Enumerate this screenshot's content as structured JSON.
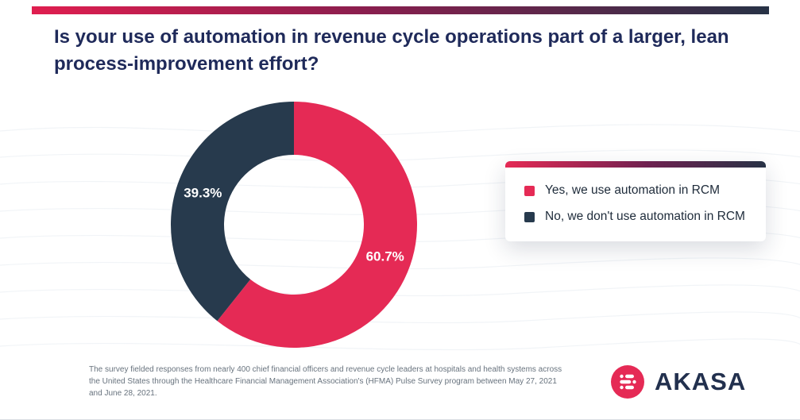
{
  "header": {
    "title": "Is your use of automation in revenue cycle operations part of a larger, lean process-improvement effort?"
  },
  "chart_data": {
    "type": "pie",
    "donut": true,
    "title": "Is your use of automation in revenue cycle operations part of a larger, lean process-improvement effort?",
    "start_angle_deg": 0,
    "direction": "clockwise",
    "legend_position": "right",
    "slices": [
      {
        "label": "Yes, we use automation in RCM",
        "value": 60.7,
        "display": "60.7%",
        "color": "#E52A55"
      },
      {
        "label": "No, we don't use automation in RCM",
        "value": 39.3,
        "display": "39.3%",
        "color": "#273A4D"
      }
    ]
  },
  "legend": {
    "items": [
      {
        "label": "Yes, we use automation in RCM",
        "color": "#E52A55"
      },
      {
        "label": "No, we don't use automation in RCM",
        "color": "#273A4D"
      }
    ]
  },
  "footer": {
    "note": "The survey fielded responses from nearly 400 chief financial officers and revenue cycle leaders at hospitals and health systems across the United States through the Healthcare Financial Management Association's (HFMA) Pulse Survey program between May 27, 2021 and June 28, 2021.",
    "brand": "AKASA"
  },
  "colors": {
    "accent_red": "#E52A55",
    "navy": "#273A4D",
    "title_navy": "#1F2A5A",
    "top_bar_gradient": [
      "#E01E4F",
      "#8A1E4E",
      "#273246"
    ]
  }
}
